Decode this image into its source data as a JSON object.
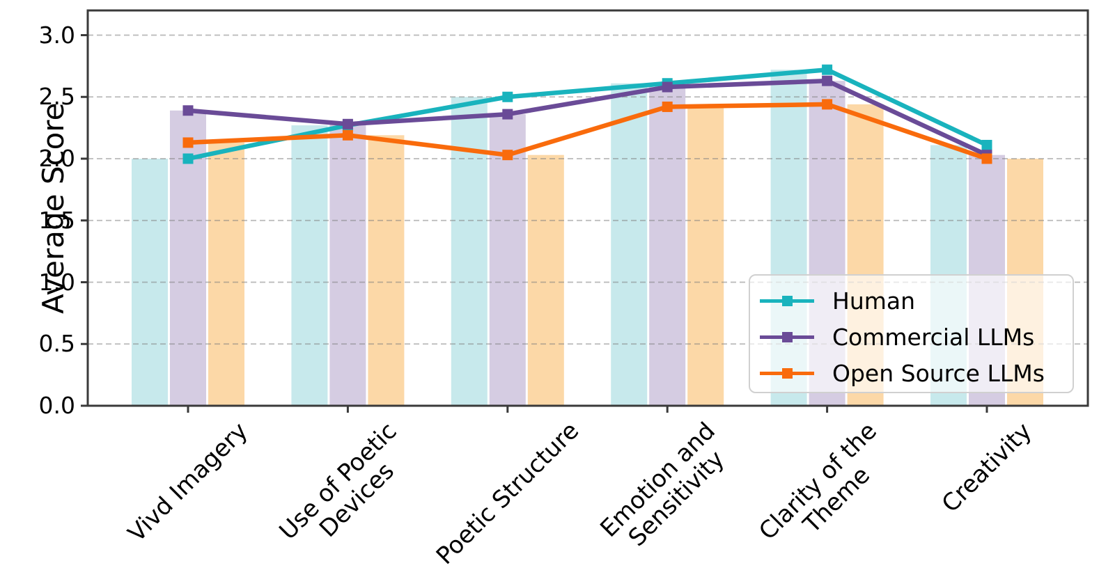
{
  "chart_data": {
    "type": "bar+line",
    "title": "",
    "ylabel": "Average Score",
    "categories": [
      "Vivd Imagery",
      "Use of Poetic\nDevices",
      "Poetic Structure",
      "Emotion and\nSensitivity",
      "Clarity of the\nTheme",
      "Creativity"
    ],
    "ytick_labels": [
      "0.0",
      "0.5",
      "1.0",
      "1.5",
      "2.0",
      "2.5",
      "3.0"
    ],
    "ytick_values": [
      0.0,
      0.5,
      1.0,
      1.5,
      2.0,
      2.5,
      3.0
    ],
    "ylim": [
      0,
      3.2
    ],
    "grid": "horizontal-dashed",
    "legend_position": "lower right",
    "series": [
      {
        "name": "Human",
        "line_color": "#19b3bd",
        "bar_color": "#c7e9ec",
        "values": [
          2.0,
          2.27,
          2.5,
          2.61,
          2.72,
          2.11
        ]
      },
      {
        "name": "Commercial LLMs",
        "line_color": "#6a4b97",
        "bar_color": "#d5cce2",
        "values": [
          2.39,
          2.28,
          2.36,
          2.58,
          2.63,
          2.03
        ]
      },
      {
        "name": "Open Source LLMs",
        "line_color": "#f96b0c",
        "bar_color": "#fcd8a7",
        "values": [
          2.13,
          2.19,
          2.03,
          2.42,
          2.44,
          2.0
        ]
      }
    ]
  }
}
